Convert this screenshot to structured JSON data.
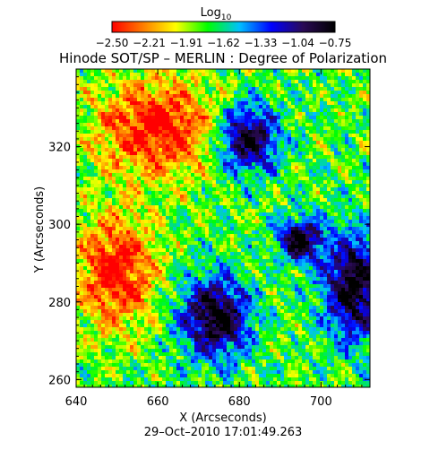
{
  "chart_data": {
    "type": "heatmap",
    "title": "Hinode SOT/SP – MERLIN : Degree of Polarization",
    "xlabel": "X (Arcseconds)",
    "ylabel": "Y (Arcseconds)",
    "xlim": [
      640,
      712
    ],
    "ylim": [
      258,
      340
    ],
    "x_ticks": [
      640,
      660,
      680,
      700
    ],
    "y_ticks": [
      260,
      280,
      300,
      320
    ],
    "timestamp": "29–Oct–2010 17:01:49.263",
    "colorbar": {
      "title": "Log",
      "title_subscript": "10",
      "ticks": [
        "−2.50",
        "−2.21",
        "−1.91",
        "−1.62",
        "−1.33",
        "−1.04",
        "−0.75"
      ],
      "range": [
        -2.5,
        -0.75
      ],
      "colormap": [
        "#ff0000",
        "#ff8000",
        "#ffff00",
        "#00ff00",
        "#00c0ff",
        "#0000ff",
        "#2a0a55",
        "#000000"
      ]
    },
    "features": [
      {
        "kind": "high_polarization",
        "x": 682,
        "y": 322,
        "rx": 7,
        "ry": 8
      },
      {
        "kind": "high_polarization",
        "x": 674,
        "y": 276,
        "rx": 8,
        "ry": 10
      },
      {
        "kind": "high_polarization",
        "x": 708,
        "y": 284,
        "rx": 7,
        "ry": 13
      },
      {
        "kind": "high_polarization",
        "x": 695,
        "y": 296,
        "rx": 5,
        "ry": 5
      },
      {
        "kind": "low_polarization",
        "x": 650,
        "y": 288,
        "rx": 9,
        "ry": 14
      },
      {
        "kind": "low_polarization",
        "x": 660,
        "y": 325,
        "rx": 14,
        "ry": 12
      }
    ]
  }
}
